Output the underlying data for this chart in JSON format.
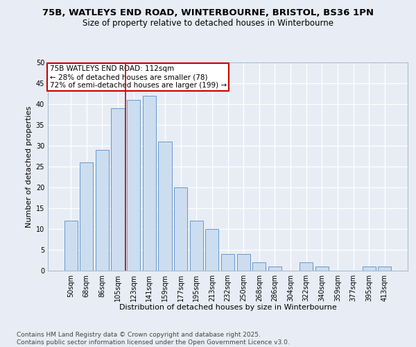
{
  "title1": "75B, WATLEYS END ROAD, WINTERBOURNE, BRISTOL, BS36 1PN",
  "title2": "Size of property relative to detached houses in Winterbourne",
  "xlabel": "Distribution of detached houses by size in Winterbourne",
  "ylabel": "Number of detached properties",
  "categories": [
    "50sqm",
    "68sqm",
    "86sqm",
    "105sqm",
    "123sqm",
    "141sqm",
    "159sqm",
    "177sqm",
    "195sqm",
    "213sqm",
    "232sqm",
    "250sqm",
    "268sqm",
    "286sqm",
    "304sqm",
    "322sqm",
    "340sqm",
    "359sqm",
    "377sqm",
    "395sqm",
    "413sqm"
  ],
  "values": [
    12,
    26,
    29,
    39,
    41,
    42,
    31,
    20,
    12,
    10,
    4,
    4,
    2,
    1,
    0,
    2,
    1,
    0,
    0,
    1,
    1
  ],
  "bar_color": "#ccddf0",
  "bar_edge_color": "#6699cc",
  "vline_x_index": 3.5,
  "vline_color": "#cc0000",
  "annotation_text": "75B WATLEYS END ROAD: 112sqm\n← 28% of detached houses are smaller (78)\n72% of semi-detached houses are larger (199) →",
  "annotation_box_color": "#ffffff",
  "annotation_box_edge_color": "#cc0000",
  "footer": "Contains HM Land Registry data © Crown copyright and database right 2025.\nContains public sector information licensed under the Open Government Licence v3.0.",
  "ylim": [
    0,
    50
  ],
  "yticks": [
    0,
    5,
    10,
    15,
    20,
    25,
    30,
    35,
    40,
    45,
    50
  ],
  "bg_color": "#e8edf5",
  "plot_bg_color": "#e8edf5",
  "grid_color": "#ffffff",
  "title1_fontsize": 9.5,
  "title2_fontsize": 8.5,
  "xlabel_fontsize": 8,
  "ylabel_fontsize": 8,
  "tick_fontsize": 7,
  "annotation_fontsize": 7.5,
  "footer_fontsize": 6.5
}
